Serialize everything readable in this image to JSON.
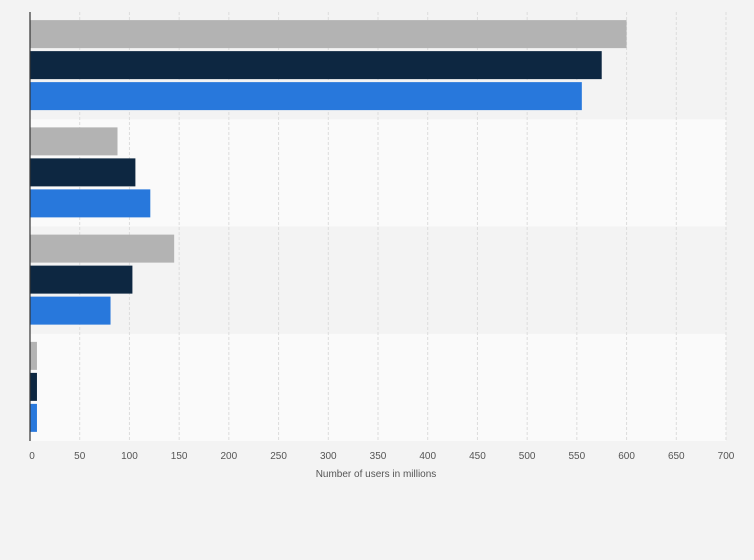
{
  "chart_data": {
    "type": "bar",
    "orientation": "horizontal",
    "title": "",
    "xlabel": "Number of users in millions",
    "ylabel": "",
    "xlim": [
      0,
      700
    ],
    "x_ticks": [
      0,
      50,
      100,
      150,
      200,
      250,
      300,
      350,
      400,
      450,
      500,
      550,
      600,
      650,
      700
    ],
    "grid": true,
    "legend": "none",
    "categories": [
      "",
      "",
      "",
      ""
    ],
    "series": [
      {
        "color": "#b3b3b3",
        "values": [
          600,
          88,
          145,
          7
        ]
      },
      {
        "color": "#0d2741",
        "values": [
          575,
          106,
          103,
          7
        ]
      },
      {
        "color": "#2878dc",
        "values": [
          555,
          121,
          81,
          7
        ]
      }
    ]
  },
  "colors": {
    "background": "#f3f3f3",
    "band_dark": "#f3f3f3",
    "band_light": "#fafafa",
    "grid": "#dcdcdc",
    "axis": "#333333",
    "tick_text": "#555555"
  }
}
